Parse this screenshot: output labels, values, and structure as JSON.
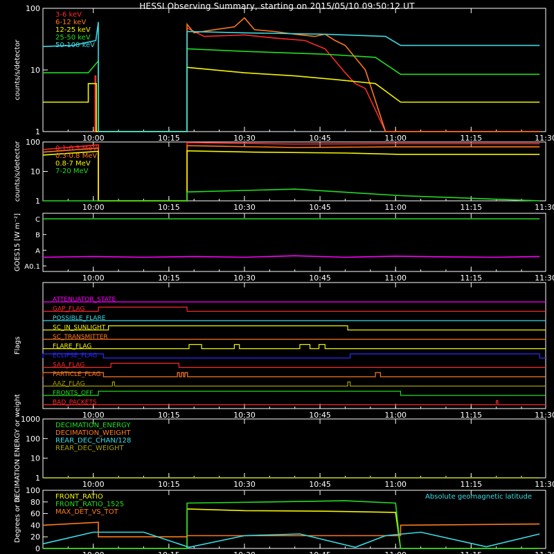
{
  "title": "HESSI Observing Summary, starting on 2015/05/10 09:50:12 UT",
  "x_ticks": [
    "10:00",
    "10:15",
    "10:30",
    "10:45",
    "11:00",
    "11:15",
    "11:30"
  ],
  "colors": {
    "red": "#ff2a2a",
    "orange": "#ff7a1a",
    "yellow": "#f5f500",
    "green": "#22dd22",
    "cyan": "#3adbe6",
    "magenta": "#ff00ff",
    "blue": "#2a2aff",
    "olive": "#a5a000",
    "white": "#ffffff"
  },
  "chart_data": [
    {
      "type": "line",
      "ylabel": "counts/s/detector",
      "yscale": "log",
      "ylim": [
        1,
        100
      ],
      "y_ticks": [
        "1",
        "10",
        "100"
      ],
      "legend_placement": "top-left",
      "series": [
        {
          "name": "3-6 keV",
          "color": "red",
          "points": [
            [
              10.0,
              1
            ],
            [
              10.35,
              1
            ],
            [
              10.35,
              8
            ],
            [
              10.5,
              8
            ],
            [
              10.5,
              1
            ],
            [
              28.6,
              1
            ],
            [
              28.6,
              48
            ],
            [
              32,
              35
            ],
            [
              40,
              37
            ],
            [
              46,
              33
            ],
            [
              52,
              30
            ],
            [
              56,
              22
            ],
            [
              60,
              9
            ],
            [
              62,
              6
            ],
            [
              64,
              5
            ],
            [
              68,
              1
            ],
            [
              98.6,
              1
            ]
          ]
        },
        {
          "name": "6-12 keV",
          "color": "orange",
          "points": [
            [
              10.0,
              1
            ],
            [
              28.6,
              1
            ],
            [
              28.6,
              55
            ],
            [
              30,
              40
            ],
            [
              34,
              45
            ],
            [
              38,
              50
            ],
            [
              40,
              70
            ],
            [
              42,
              45
            ],
            [
              46,
              42
            ],
            [
              50,
              38
            ],
            [
              54,
              35
            ],
            [
              56,
              38
            ],
            [
              58,
              30
            ],
            [
              60,
              25
            ],
            [
              64,
              10
            ],
            [
              68,
              1
            ],
            [
              98.6,
              1
            ]
          ]
        },
        {
          "name": "12-25 keV",
          "color": "yellow",
          "points": [
            [
              0,
              3
            ],
            [
              9,
              3
            ],
            [
              9,
              6
            ],
            [
              10.6,
              6
            ],
            [
              10.6,
              1
            ],
            [
              28.6,
              1
            ],
            [
              28.6,
              11
            ],
            [
              40,
              9
            ],
            [
              50,
              8
            ],
            [
              58,
              7
            ],
            [
              66,
              6
            ],
            [
              71,
              3
            ],
            [
              98.6,
              3
            ]
          ]
        },
        {
          "name": "25-50 keV",
          "color": "green",
          "points": [
            [
              0,
              9
            ],
            [
              9,
              9
            ],
            [
              11,
              14
            ],
            [
              11,
              1
            ],
            [
              28.6,
              1
            ],
            [
              28.6,
              22
            ],
            [
              40,
              20
            ],
            [
              56,
              18
            ],
            [
              66,
              16
            ],
            [
              71,
              8.5
            ],
            [
              98.6,
              8.5
            ]
          ]
        },
        {
          "name": "50-100 keV",
          "color": "cyan",
          "points": [
            [
              0,
              24
            ],
            [
              6,
              25
            ],
            [
              10.5,
              30
            ],
            [
              11,
              60
            ],
            [
              11,
              1
            ],
            [
              28.6,
              1
            ],
            [
              28.6,
              42
            ],
            [
              40,
              40
            ],
            [
              56,
              38
            ],
            [
              68,
              35
            ],
            [
              71,
              25
            ],
            [
              98.6,
              25
            ]
          ]
        }
      ]
    },
    {
      "type": "line",
      "ylabel": "counts/s/detector",
      "yscale": "log",
      "ylim": [
        1,
        100
      ],
      "y_ticks": [
        "1",
        "10",
        "100"
      ],
      "legend_placement": "top-left",
      "series": [
        {
          "name": "0.1-0.3 MeV",
          "color": "red",
          "points": [
            [
              0,
              55
            ],
            [
              11,
              80
            ],
            [
              11,
              1
            ],
            [
              28.6,
              1
            ],
            [
              28.6,
              95
            ],
            [
              50,
              85
            ],
            [
              70,
              88
            ],
            [
              98.6,
              88
            ]
          ]
        },
        {
          "name": "0.3-0.8 MeV",
          "color": "orange",
          "points": [
            [
              0,
              45
            ],
            [
              11,
              62
            ],
            [
              11,
              1
            ],
            [
              28.6,
              1
            ],
            [
              28.6,
              75
            ],
            [
              50,
              65
            ],
            [
              70,
              68
            ],
            [
              98.6,
              68
            ]
          ]
        },
        {
          "name": "0.8-7 MeV",
          "color": "yellow",
          "points": [
            [
              0,
              36
            ],
            [
              11,
              48
            ],
            [
              11,
              1
            ],
            [
              28.6,
              1
            ],
            [
              28.6,
              50
            ],
            [
              42,
              45
            ],
            [
              60,
              42
            ],
            [
              71,
              38
            ],
            [
              98.6,
              38
            ]
          ]
        },
        {
          "name": "7-20 MeV",
          "color": "green",
          "points": [
            [
              0,
              1
            ],
            [
              28.6,
              1
            ],
            [
              28.6,
              2
            ],
            [
              50,
              2.5
            ],
            [
              71,
              1.5
            ],
            [
              98.6,
              1
            ]
          ]
        }
      ]
    },
    {
      "type": "line",
      "ylabel": "GOES15 [W m⁻²]",
      "y_ticks": [
        "A0.1",
        "A",
        "B",
        "C"
      ],
      "ylim_labels": [
        "A0.1",
        "C"
      ],
      "series": [
        {
          "name": "",
          "color": "magenta",
          "points": [
            [
              0,
              0.55
            ],
            [
              10,
              0.6
            ],
            [
              20,
              0.55
            ],
            [
              30,
              0.6
            ],
            [
              40,
              0.55
            ],
            [
              50,
              0.65
            ],
            [
              60,
              0.55
            ],
            [
              70,
              0.62
            ],
            [
              80,
              0.58
            ],
            [
              90,
              0.55
            ],
            [
              98.6,
              0.6
            ]
          ]
        },
        {
          "name": "",
          "color": "green",
          "points": [
            [
              0,
              3.0
            ],
            [
              98.6,
              3.0
            ]
          ]
        }
      ]
    },
    {
      "type": "line",
      "ylabel": "Flags",
      "series": [
        {
          "name": "ATTENUATOR_STATE",
          "color": "magenta",
          "steps": []
        },
        {
          "name": "GAP_FLAG",
          "color": "red",
          "steps": [
            [
              11,
              28.6
            ]
          ]
        },
        {
          "name": "POSSIBLE_FLARE",
          "color": "cyan",
          "steps": []
        },
        {
          "name": "SC_IN_SUNLIGHT",
          "color": "yellow",
          "steps": [
            [
              13,
              60.5
            ]
          ]
        },
        {
          "name": "SC_TRANSMITTER",
          "color": "orange",
          "steps": []
        },
        {
          "name": "FLARE_FLAG",
          "color": "yellow",
          "steps": [
            [
              29,
              31.5
            ],
            [
              38,
              39
            ],
            [
              51,
              53
            ],
            [
              54.8,
              56
            ]
          ]
        },
        {
          "name": "ECLIPSE_FLAG",
          "color": "blue",
          "steps": [
            [
              0,
              12
            ],
            [
              61,
              98.6
            ]
          ]
        },
        {
          "name": "SAA_FLAG",
          "color": "red",
          "steps": [
            [
              13.5,
              27
            ]
          ]
        },
        {
          "name": "PARTICLE_FLAG",
          "color": "orange",
          "steps": [
            [
              0,
              12
            ],
            [
              26.7,
              27.1
            ],
            [
              27.5,
              27.9
            ],
            [
              28.2,
              28.7
            ],
            [
              66,
              67
            ]
          ]
        },
        {
          "name": "AAZ_FLAG",
          "color": "olive",
          "steps": [
            [
              13.8,
              14.2
            ],
            [
              60.5,
              61
            ]
          ]
        },
        {
          "name": "FRONTS_OFF",
          "color": "green",
          "steps": [
            [
              11,
              71
            ]
          ]
        },
        {
          "name": "BAD_PACKETS",
          "color": "red",
          "steps": [
            [
              90,
              90.3
            ]
          ]
        }
      ]
    },
    {
      "type": "line",
      "ylabel": "DECIMATION ENERGY or weight",
      "yscale": "log",
      "ylim": [
        1,
        1000
      ],
      "y_ticks": [
        "1",
        "10",
        "100",
        "1000"
      ],
      "legend_placement": "top-left",
      "series": [
        {
          "name": "DECIMATION_ENERGY",
          "color": "green",
          "points": [
            [
              0,
              1
            ],
            [
              98.6,
              1
            ]
          ]
        },
        {
          "name": "DECIMATION_WEIGHT",
          "color": "orange",
          "points": [
            [
              0,
              1
            ],
            [
              98.6,
              1
            ]
          ]
        },
        {
          "name": "REAR_DEC_CHAN/128",
          "color": "cyan",
          "points": [
            [
              0,
              1
            ],
            [
              98.6,
              1
            ]
          ]
        },
        {
          "name": "REAR_DEC_WEIGHT",
          "color": "olive",
          "points": [
            [
              0,
              1
            ],
            [
              98.6,
              1
            ]
          ]
        }
      ]
    },
    {
      "type": "line",
      "ylabel": "Degrees or %",
      "ylim": [
        0,
        100
      ],
      "y_ticks": [
        "0",
        "20",
        "40",
        "60",
        "80",
        "100"
      ],
      "annotation": "Absolute geomagnetic latitude",
      "legend_placement": "top-left",
      "series": [
        {
          "name": "FRONT_RATIO",
          "color": "yellow",
          "points": [
            [
              0,
              0
            ],
            [
              28.6,
              0
            ],
            [
              28.6,
              68
            ],
            [
              40,
              65
            ],
            [
              56,
              64
            ],
            [
              70,
              62
            ],
            [
              71,
              0
            ],
            [
              98.6,
              0
            ]
          ]
        },
        {
          "name": "FRONT_RATIO_1525",
          "color": "green",
          "points": [
            [
              0,
              0
            ],
            [
              28.6,
              0
            ],
            [
              28.6,
              78
            ],
            [
              45,
              80
            ],
            [
              60,
              82
            ],
            [
              70,
              78
            ],
            [
              71,
              0
            ],
            [
              98.6,
              0
            ]
          ]
        },
        {
          "name": "MAX_DET_VS_TOT",
          "color": "orange",
          "points": [
            [
              0,
              40
            ],
            [
              11,
              45
            ],
            [
              11,
              20
            ],
            [
              28.6,
              20
            ],
            [
              28.6,
              22
            ],
            [
              50,
              22
            ],
            [
              71,
              22
            ],
            [
              71,
              40
            ],
            [
              98.6,
              42
            ]
          ]
        },
        {
          "name": "",
          "color": "cyan",
          "points": [
            [
              0,
              8
            ],
            [
              10,
              28
            ],
            [
              20,
              28
            ],
            [
              29,
              2
            ],
            [
              40,
              22
            ],
            [
              51,
              25
            ],
            [
              62,
              2
            ],
            [
              68,
              22
            ],
            [
              75,
              28
            ],
            [
              88,
              3
            ],
            [
              98.6,
              25
            ]
          ]
        }
      ]
    }
  ]
}
